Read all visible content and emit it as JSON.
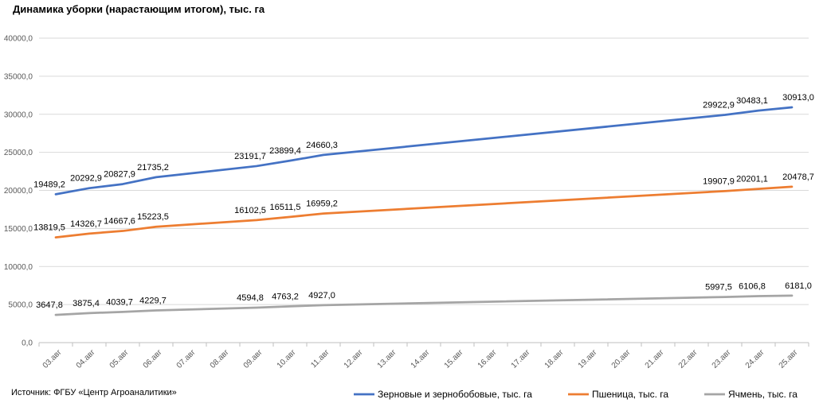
{
  "chart_data": {
    "type": "line",
    "title": "Динамика уборки (нарастающим итогом), тыс. га",
    "source": "Источник: ФГБУ «Центр Агроаналитики»",
    "ylim": [
      0,
      40000
    ],
    "yticks": [
      "0,0",
      "5000,0",
      "10000,0",
      "15000,0",
      "20000,0",
      "25000,0",
      "30000,0",
      "35000,0",
      "40000,0"
    ],
    "categories": [
      "03.авг",
      "04.авг",
      "05.авг",
      "06.авг",
      "07.авг",
      "08.авг",
      "09.авг",
      "10.авг",
      "11.авг",
      "12.авг",
      "13.авг",
      "14.авг",
      "15.авг",
      "16.авг",
      "17.авг",
      "18.авг",
      "19.авг",
      "20.авг",
      "21.авг",
      "22.авг",
      "23.авг",
      "24.авг",
      "25.авг"
    ],
    "series": [
      {
        "name": "Зерновые и зернобобовые,  тыс. га",
        "color": "#4472C4",
        "points": [
          {
            "i": 0,
            "value": 19489.2,
            "label": "19489,2"
          },
          {
            "i": 1,
            "value": 20292.9,
            "label": "20292,9"
          },
          {
            "i": 2,
            "value": 20827.9,
            "label": "20827,9"
          },
          {
            "i": 3,
            "value": 21735.2,
            "label": "21735,2"
          },
          {
            "i": 6,
            "value": 23191.7,
            "label": "23191,7"
          },
          {
            "i": 7,
            "value": 23899.4,
            "label": "23899,4"
          },
          {
            "i": 8,
            "value": 24660.3,
            "label": "24660,3"
          },
          {
            "i": 20,
            "value": 29922.9,
            "label": "29922,9"
          },
          {
            "i": 21,
            "value": 30483.1,
            "label": "30483,1"
          },
          {
            "i": 22,
            "value": 30913.0,
            "label": "30913,0"
          }
        ]
      },
      {
        "name": "Пшеница, тыс. га",
        "color": "#ED7D31",
        "points": [
          {
            "i": 0,
            "value": 13819.5,
            "label": "13819,5"
          },
          {
            "i": 1,
            "value": 14326.7,
            "label": "14326,7"
          },
          {
            "i": 2,
            "value": 14667.6,
            "label": "14667,6"
          },
          {
            "i": 3,
            "value": 15223.5,
            "label": "15223,5"
          },
          {
            "i": 6,
            "value": 16102.5,
            "label": "16102,5"
          },
          {
            "i": 7,
            "value": 16511.5,
            "label": "16511,5"
          },
          {
            "i": 8,
            "value": 16959.2,
            "label": "16959,2"
          },
          {
            "i": 20,
            "value": 19907.9,
            "label": "19907,9"
          },
          {
            "i": 21,
            "value": 20201.1,
            "label": "20201,1"
          },
          {
            "i": 22,
            "value": 20478.7,
            "label": "20478,7"
          }
        ]
      },
      {
        "name": "Ячмень, тыс. га",
        "color": "#A5A5A5",
        "points": [
          {
            "i": 0,
            "value": 3647.8,
            "label": "3647,8"
          },
          {
            "i": 1,
            "value": 3875.4,
            "label": "3875,4"
          },
          {
            "i": 2,
            "value": 4039.7,
            "label": "4039,7"
          },
          {
            "i": 3,
            "value": 4229.7,
            "label": "4229,7"
          },
          {
            "i": 6,
            "value": 4594.8,
            "label": "4594,8"
          },
          {
            "i": 7,
            "value": 4763.2,
            "label": "4763,2"
          },
          {
            "i": 8,
            "value": 4927.0,
            "label": "4927,0"
          },
          {
            "i": 20,
            "value": 5997.5,
            "label": "5997,5"
          },
          {
            "i": 21,
            "value": 6106.8,
            "label": "6106,8"
          },
          {
            "i": 22,
            "value": 6181.0,
            "label": "6181,0"
          }
        ]
      }
    ],
    "grid": true,
    "legend": "bottom-right"
  }
}
